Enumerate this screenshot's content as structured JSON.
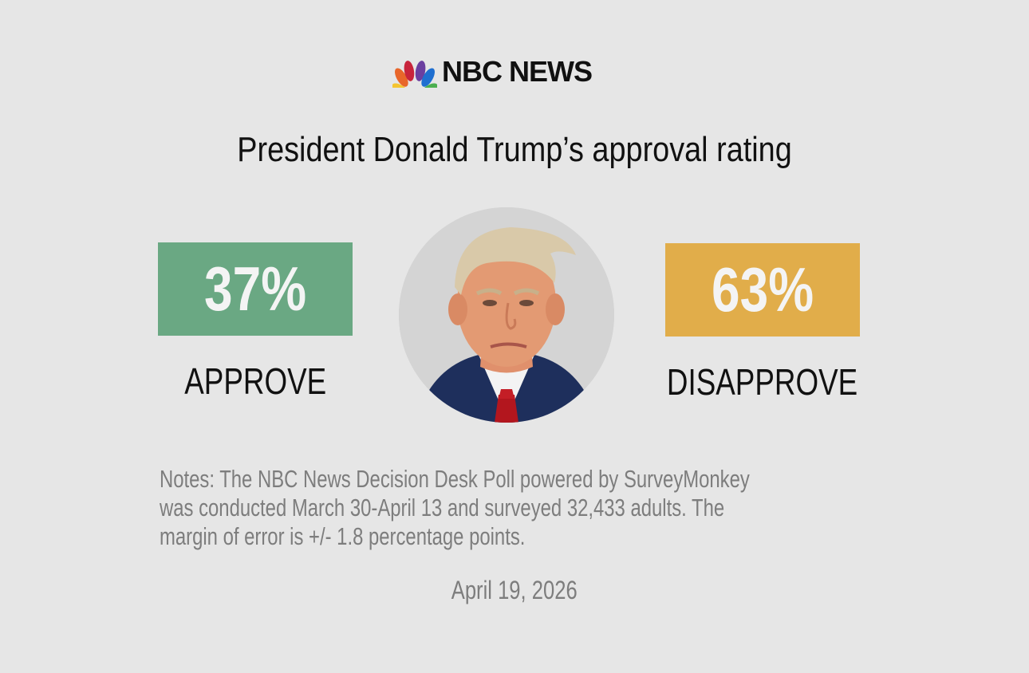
{
  "brand": {
    "name": "NBC NEWS",
    "logo_icon": "nbc-peacock-icon"
  },
  "chart_data": {
    "type": "bar",
    "title": "President Donald Trump’s approval rating",
    "categories": [
      "APPROVE",
      "DISAPPROVE"
    ],
    "values": [
      37,
      63
    ],
    "value_labels": [
      "37%",
      "63%"
    ],
    "unit": "%",
    "colors": [
      "#6aa883",
      "#e1ad4a"
    ]
  },
  "notes": "Notes: The NBC News Decision Desk Poll powered by SurveyMonkey was conducted March 30-April 13 and surveyed 32,433 adults. The margin of error is +/- 1.8 percentage points.",
  "date": "April 19, 2026"
}
